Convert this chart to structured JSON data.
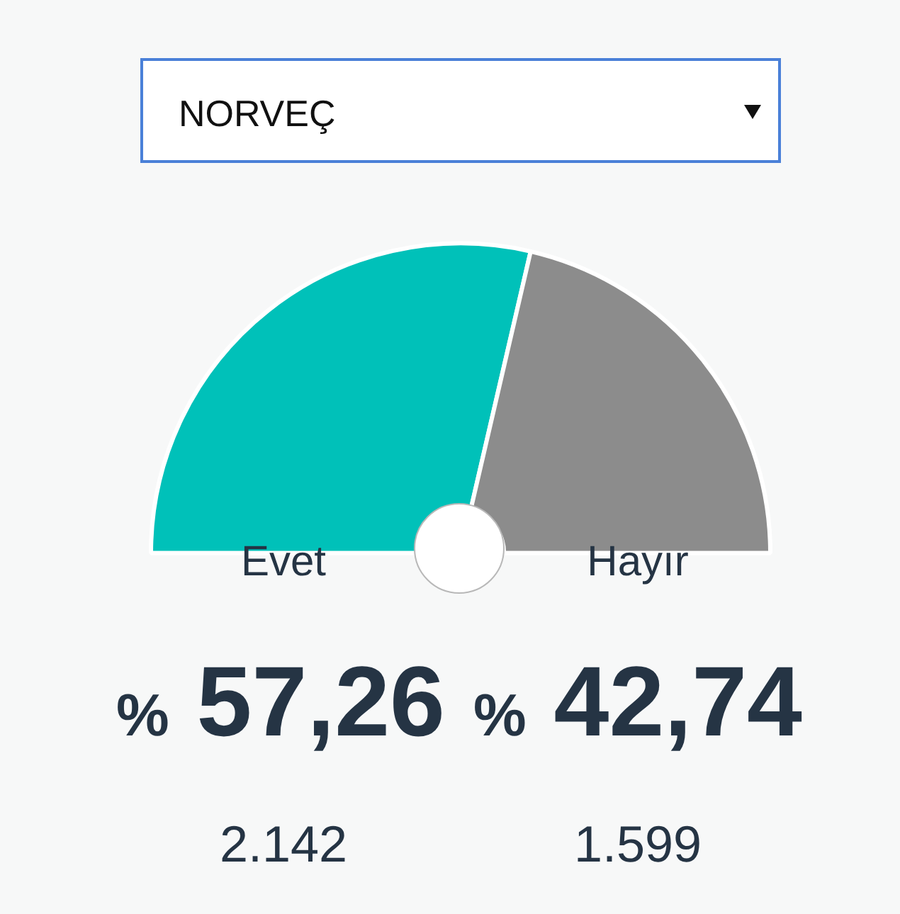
{
  "chart_data": {
    "type": "donut",
    "title": "NORVEÇ",
    "categories": [
      "Evet",
      "Hayır"
    ],
    "values": [
      57.26,
      42.74
    ],
    "colors": [
      "#00c1b9",
      "#8c8c8c"
    ],
    "value_labels": [
      "% 57,26",
      "% 42,74"
    ],
    "annotations": [
      "2.142",
      "1.599"
    ],
    "legend": false
  }
}
